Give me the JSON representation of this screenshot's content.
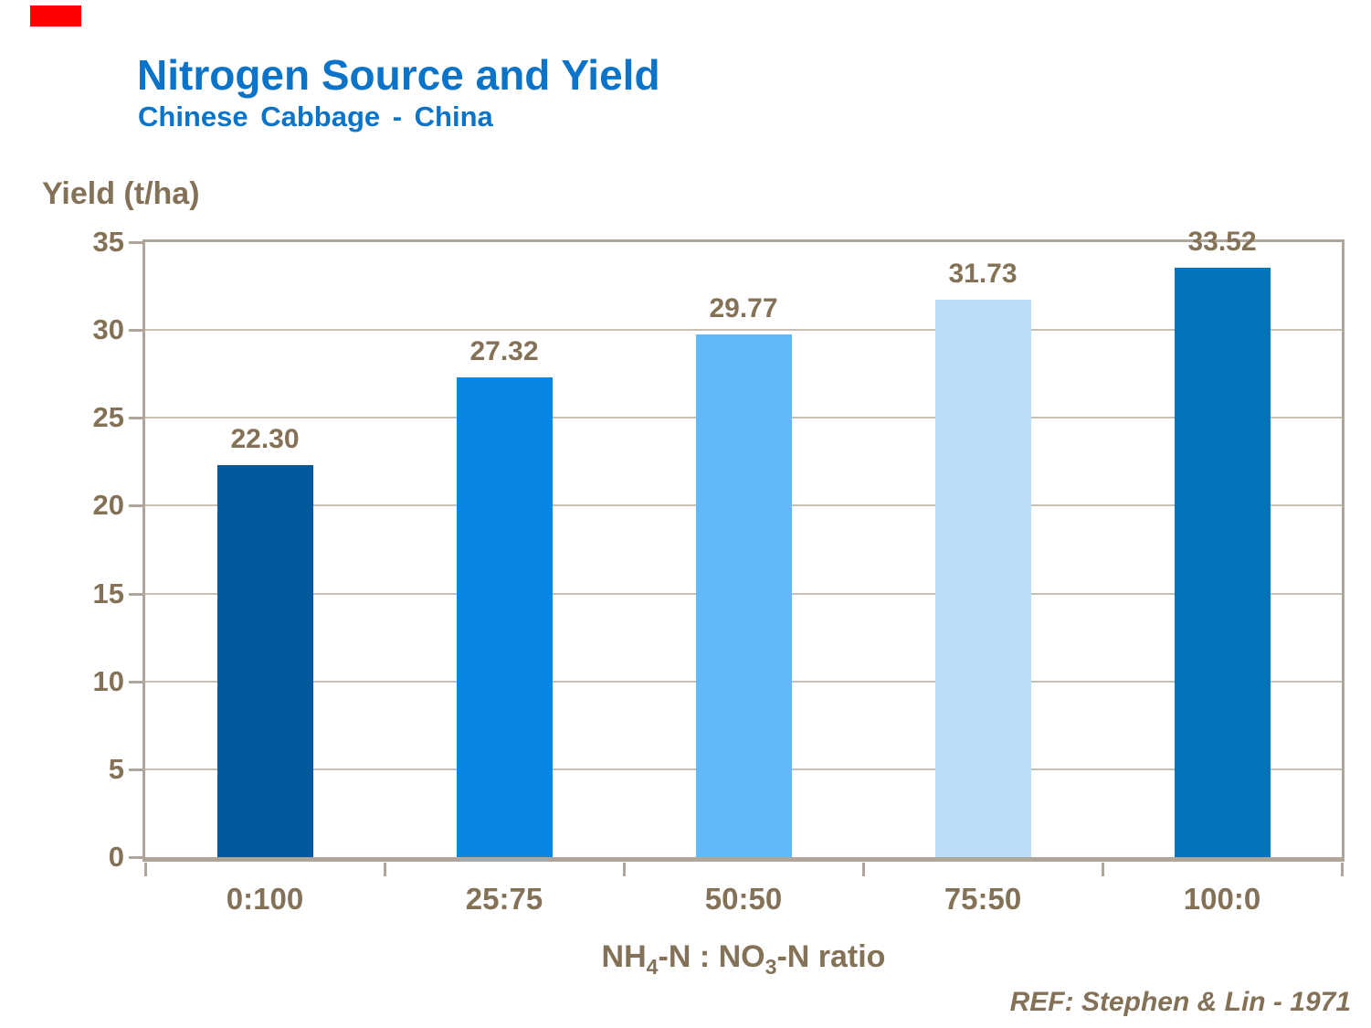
{
  "page": {
    "background": "#ffffff"
  },
  "header": {
    "title": "Nitrogen Source and Yield",
    "subtitle": "Chinese Cabbage - China"
  },
  "footer": {
    "reference": "REF: Stephen & Lin - 1971"
  },
  "xlabel_parts": {
    "pre": "NH",
    "sub1": "4",
    "mid": "-N : NO",
    "sub2": "3",
    "post": "-N ratio"
  },
  "colors": {
    "title_blue": "#0C74C8",
    "text_brown": "#847258",
    "axis_line": "#AFA599",
    "gridline": "#C7BEB4",
    "red_marker": "#FF0000"
  },
  "chart_data": {
    "type": "bar",
    "title": "Nitrogen Source and Yield",
    "subtitle": "Chinese Cabbage - China",
    "categories": [
      "0:100",
      "25:75",
      "50:50",
      "75:50",
      "100:0"
    ],
    "values": [
      22.3,
      27.32,
      29.77,
      31.73,
      33.52
    ],
    "value_labels": [
      "22.30",
      "27.32",
      "29.77",
      "31.73",
      "33.52"
    ],
    "bar_colors": [
      "#04589C",
      "#0786E4",
      "#61BAF7",
      "#BADEF9",
      "#0473BE"
    ],
    "xlabel": "NH4-N : NO3-N ratio",
    "ylabel": "Yield (t/ha)",
    "ylim": [
      0,
      35
    ],
    "yticks": [
      0,
      5,
      10,
      15,
      20,
      25,
      30,
      35
    ],
    "grid": true,
    "legend_position": "none",
    "reference": "REF: Stephen & Lin - 1971"
  }
}
